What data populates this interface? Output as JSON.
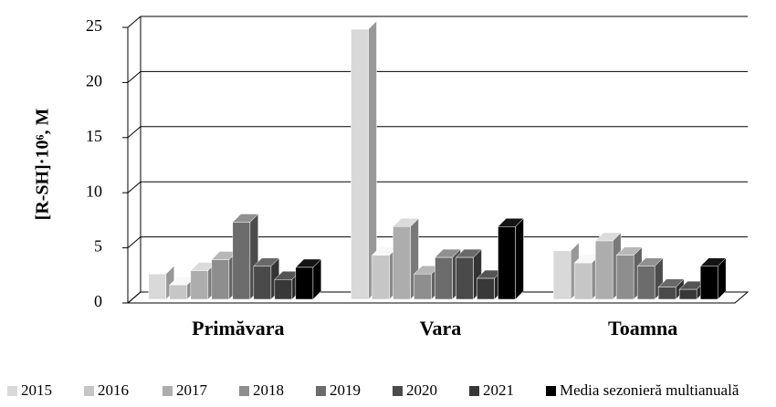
{
  "chart_data": {
    "type": "bar3d",
    "ylabel": "[R-SH]·10⁶, M",
    "categories": [
      "Primăvara",
      "Vara",
      "Toamna"
    ],
    "series": [
      {
        "name": "2015",
        "color": "#d9d9d9",
        "values": [
          2.3,
          24.5,
          4.4
        ]
      },
      {
        "name": "2016",
        "color": "#c6c6c6",
        "values": [
          1.3,
          4.0,
          3.3
        ]
      },
      {
        "name": "2017",
        "color": "#adadad",
        "values": [
          2.6,
          6.6,
          5.3
        ]
      },
      {
        "name": "2018",
        "color": "#8e8e8e",
        "values": [
          3.6,
          2.3,
          4.0
        ]
      },
      {
        "name": "2019",
        "color": "#6c6c6c",
        "values": [
          7.0,
          3.8,
          3.0
        ]
      },
      {
        "name": "2020",
        "color": "#4a4a4a",
        "values": [
          3.0,
          3.8,
          1.1
        ]
      },
      {
        "name": "2021",
        "color": "#383838",
        "values": [
          1.8,
          1.9,
          0.9
        ]
      },
      {
        "name": "Media sezonieră multianuală",
        "color": "#000000",
        "values": [
          2.9,
          6.6,
          3.0
        ]
      }
    ],
    "ylim": [
      0,
      25
    ],
    "yticks": [
      0,
      5,
      10,
      15,
      20,
      25
    ],
    "grid": true
  }
}
